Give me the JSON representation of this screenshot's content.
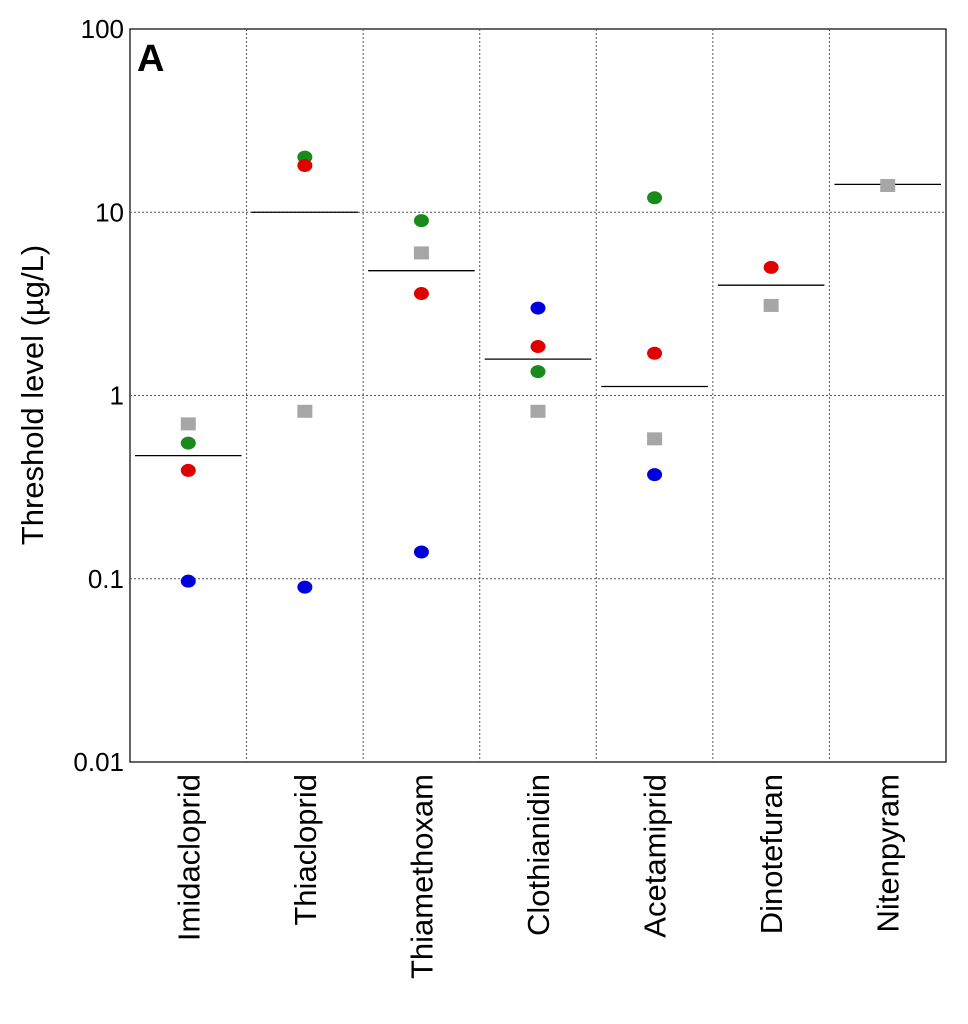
{
  "chart_data": {
    "type": "scatter",
    "panel_label": "A",
    "title": "",
    "xlabel": "",
    "ylabel": "Threshold level (µg/L)",
    "y_scale": "log",
    "ylim": [
      0.01,
      100
    ],
    "y_ticks": [
      {
        "value": 0.01,
        "label": "0.01"
      },
      {
        "value": 0.1,
        "label": "0.1"
      },
      {
        "value": 1,
        "label": "1"
      },
      {
        "value": 10,
        "label": "10"
      },
      {
        "value": 100,
        "label": "100"
      }
    ],
    "grid": true,
    "legend": "none",
    "categories": [
      "Imidacloprid",
      "Thiacloprid",
      "Thiamethoxam",
      "Clothianidin",
      "Acetamiprid",
      "Dinotefuran",
      "Nitenpyram"
    ],
    "series": [
      {
        "marker": "square",
        "color": "#a6a6a6",
        "values": [
          0.7,
          0.82,
          6.0,
          0.82,
          0.58,
          3.1,
          14
        ]
      },
      {
        "marker": "circle",
        "color": "#1a8a1a",
        "values": [
          0.55,
          20,
          9.0,
          1.35,
          12,
          null,
          null
        ]
      },
      {
        "marker": "circle",
        "color": "#e00000",
        "values": [
          0.39,
          18,
          3.6,
          1.85,
          1.7,
          5.0,
          null
        ]
      },
      {
        "marker": "circle",
        "color": "#0000dd",
        "values": [
          0.097,
          0.09,
          0.14,
          3.0,
          0.37,
          null,
          null
        ]
      }
    ],
    "reference_lines": {
      "color": "#000000",
      "values": [
        0.47,
        10,
        4.8,
        1.58,
        1.12,
        4.0,
        14.2
      ]
    }
  }
}
